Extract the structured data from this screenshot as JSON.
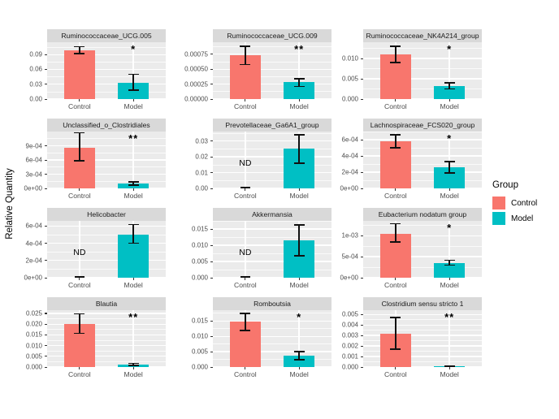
{
  "figure": {
    "y_axis_label": "Relative Quantity",
    "legend": {
      "title": "Group",
      "items": [
        {
          "label": "Control",
          "color": "#F8766D"
        },
        {
          "label": "Model",
          "color": "#00BFC4"
        }
      ]
    },
    "colors": {
      "control": "#F8766D",
      "model": "#00BFC4",
      "panel_background": "#EBEBEB",
      "strip_background": "#D9D9D9",
      "gridline": "#FFFFFF"
    }
  },
  "chart_data": {
    "type": "bar",
    "layout": "facet-grid 4 rows x 3 cols, free y scales, error bars, significance stars",
    "categories": [
      "Control",
      "Model"
    ],
    "panels": [
      {
        "title": "Ruminococcaceae_UCG.005",
        "tick_labels": [
          "0.00",
          "0.03",
          "0.06",
          "0.09"
        ],
        "tick_values": [
          0,
          0.03,
          0.06,
          0.09
        ],
        "ylim": [
          0,
          0.115
        ],
        "series": [
          {
            "name": "Control",
            "value": 0.099,
            "err_lo": 0.092,
            "err_hi": 0.106,
            "nd": false
          },
          {
            "name": "Model",
            "value": 0.033,
            "err_lo": 0.018,
            "err_hi": 0.05,
            "nd": false
          }
        ],
        "sig": "*"
      },
      {
        "title": "Ruminococcaceae_UCG.009",
        "tick_labels": [
          "0.00000",
          "0.00025",
          "0.00050",
          "0.00075"
        ],
        "tick_values": [
          0,
          0.00025,
          0.0005,
          0.00075
        ],
        "ylim": [
          0,
          0.00095
        ],
        "series": [
          {
            "name": "Control",
            "value": 0.00073,
            "err_lo": 0.00058,
            "err_hi": 0.00088,
            "nd": false
          },
          {
            "name": "Model",
            "value": 0.00028,
            "err_lo": 0.00021,
            "err_hi": 0.00034,
            "nd": false
          }
        ],
        "sig": "**"
      },
      {
        "title": "Ruminococcaceae_NK4A214_group",
        "tick_labels": [
          "0.000",
          "0.005",
          "0.010"
        ],
        "tick_values": [
          0,
          0.005,
          0.01
        ],
        "ylim": [
          0,
          0.014
        ],
        "series": [
          {
            "name": "Control",
            "value": 0.011,
            "err_lo": 0.009,
            "err_hi": 0.013,
            "nd": false
          },
          {
            "name": "Model",
            "value": 0.0032,
            "err_lo": 0.0025,
            "err_hi": 0.004,
            "nd": false
          }
        ],
        "sig": "*"
      },
      {
        "title": "Unclassified_o_Clostridiales",
        "tick_labels": [
          "0e+00",
          "3e-04",
          "6e-04",
          "9e-04"
        ],
        "tick_values": [
          0,
          0.0003,
          0.0006,
          0.0009
        ],
        "ylim": [
          0,
          0.0012
        ],
        "series": [
          {
            "name": "Control",
            "value": 0.00086,
            "err_lo": 0.00058,
            "err_hi": 0.00117,
            "nd": false
          },
          {
            "name": "Model",
            "value": 0.0001,
            "err_lo": 7e-05,
            "err_hi": 0.00014,
            "nd": false
          }
        ],
        "sig": "**"
      },
      {
        "title": "Prevotellaceae_Ga6A1_group",
        "tick_labels": [
          "0.00",
          "0.01",
          "0.02",
          "0.03"
        ],
        "tick_values": [
          0,
          0.01,
          0.02,
          0.03
        ],
        "ylim": [
          0,
          0.036
        ],
        "series": [
          {
            "name": "Control",
            "value": 0,
            "err_lo": 0,
            "err_hi": 0,
            "nd": true
          },
          {
            "name": "Model",
            "value": 0.025,
            "err_lo": 0.016,
            "err_hi": 0.034,
            "nd": false
          }
        ],
        "sig": ""
      },
      {
        "title": "Lachnospiraceae_FCS020_group",
        "tick_labels": [
          "0e+00",
          "2e-04",
          "4e-04",
          "6e-04"
        ],
        "tick_values": [
          0,
          0.0002,
          0.0004,
          0.0006
        ],
        "ylim": [
          0,
          0.0007
        ],
        "series": [
          {
            "name": "Control",
            "value": 0.00058,
            "err_lo": 0.0005,
            "err_hi": 0.00066,
            "nd": false
          },
          {
            "name": "Model",
            "value": 0.00026,
            "err_lo": 0.00019,
            "err_hi": 0.00033,
            "nd": false
          }
        ],
        "sig": "*"
      },
      {
        "title": "Helicobacter",
        "tick_labels": [
          "0e+00",
          "2e-04",
          "4e-04",
          "6e-04"
        ],
        "tick_values": [
          0,
          0.0002,
          0.0004,
          0.0006
        ],
        "ylim": [
          0,
          0.00066
        ],
        "series": [
          {
            "name": "Control",
            "value": 0,
            "err_lo": 0,
            "err_hi": 0,
            "nd": true
          },
          {
            "name": "Model",
            "value": 0.0005,
            "err_lo": 0.0004,
            "err_hi": 0.00062,
            "nd": false
          }
        ],
        "sig": ""
      },
      {
        "title": "Akkermansia",
        "tick_labels": [
          "0.000",
          "0.005",
          "0.010",
          "0.015"
        ],
        "tick_values": [
          0,
          0.005,
          0.01,
          0.015
        ],
        "ylim": [
          0,
          0.0175
        ],
        "series": [
          {
            "name": "Control",
            "value": 0,
            "err_lo": 0,
            "err_hi": 0,
            "nd": true
          },
          {
            "name": "Model",
            "value": 0.0115,
            "err_lo": 0.0068,
            "err_hi": 0.0163,
            "nd": false
          }
        ],
        "sig": ""
      },
      {
        "title": "Eubacterium nodatum group",
        "tick_labels": [
          "0e+00",
          "5e-04",
          "1e-03"
        ],
        "tick_values": [
          0,
          0.0005,
          0.001
        ],
        "ylim": [
          0,
          0.00135
        ],
        "series": [
          {
            "name": "Control",
            "value": 0.00105,
            "err_lo": 0.00085,
            "err_hi": 0.00128,
            "nd": false
          },
          {
            "name": "Model",
            "value": 0.00035,
            "err_lo": 0.0003,
            "err_hi": 0.00042,
            "nd": false
          }
        ],
        "sig": "*"
      },
      {
        "title": "Blautia",
        "tick_labels": [
          "0.000",
          "0.005",
          "0.010",
          "0.015",
          "0.020",
          "0.025"
        ],
        "tick_values": [
          0,
          0.005,
          0.01,
          0.015,
          0.02,
          0.025
        ],
        "ylim": [
          0,
          0.0265
        ],
        "series": [
          {
            "name": "Control",
            "value": 0.0202,
            "err_lo": 0.0158,
            "err_hi": 0.0247,
            "nd": false
          },
          {
            "name": "Model",
            "value": 0.0013,
            "err_lo": 0.0008,
            "err_hi": 0.0018,
            "nd": false
          }
        ],
        "sig": "**"
      },
      {
        "title": "Romboutsia",
        "tick_labels": [
          "0.000",
          "0.005",
          "0.010",
          "0.015"
        ],
        "tick_values": [
          0,
          0.005,
          0.01,
          0.015
        ],
        "ylim": [
          0,
          0.0185
        ],
        "series": [
          {
            "name": "Control",
            "value": 0.0147,
            "err_lo": 0.0119,
            "err_hi": 0.0174,
            "nd": false
          },
          {
            "name": "Model",
            "value": 0.0038,
            "err_lo": 0.0024,
            "err_hi": 0.005,
            "nd": false
          }
        ],
        "sig": "*"
      },
      {
        "title": "Clostridium sensu stricto 1",
        "tick_labels": [
          "0.000",
          "0.001",
          "0.002",
          "0.003",
          "0.004",
          "0.005"
        ],
        "tick_values": [
          0,
          0.001,
          0.002,
          0.003,
          0.004,
          0.005
        ],
        "ylim": [
          0,
          0.0054
        ],
        "series": [
          {
            "name": "Control",
            "value": 0.0032,
            "err_lo": 0.0017,
            "err_hi": 0.0047,
            "nd": false
          },
          {
            "name": "Model",
            "value": 6e-05,
            "err_lo": 2e-05,
            "err_hi": 0.00012,
            "nd": false
          }
        ],
        "sig": "**"
      }
    ],
    "annotations": {
      "nd_label": "ND",
      "sig_one": "*",
      "sig_two": "**"
    }
  }
}
